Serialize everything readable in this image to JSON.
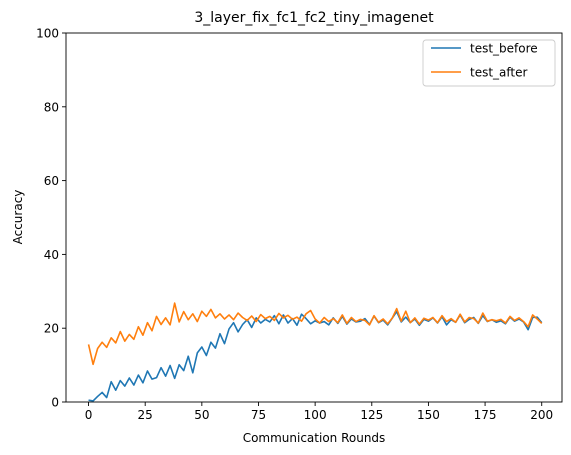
{
  "chart_data": {
    "type": "line",
    "title": "3_layer_fix_fc1_fc2_tiny_imagenet",
    "xlabel": "Communication Rounds",
    "ylabel": "Accuracy",
    "xlim": [
      -9.95,
      208.95
    ],
    "ylim": [
      0,
      100
    ],
    "xticks": [
      0,
      25,
      50,
      75,
      100,
      125,
      150,
      175,
      200
    ],
    "yticks": [
      0,
      20,
      40,
      60,
      80,
      100
    ],
    "grid": false,
    "legend_position": "top-right",
    "series": [
      {
        "name": "test_before",
        "color": "#1f77b4",
        "x": [
          0,
          2,
          4,
          6,
          8,
          10,
          12,
          14,
          16,
          18,
          20,
          22,
          24,
          26,
          28,
          30,
          32,
          34,
          36,
          38,
          40,
          42,
          44,
          46,
          48,
          50,
          52,
          54,
          56,
          58,
          60,
          62,
          64,
          66,
          68,
          70,
          72,
          74,
          76,
          78,
          80,
          82,
          84,
          86,
          88,
          90,
          92,
          94,
          96,
          98,
          100,
          102,
          104,
          106,
          108,
          110,
          112,
          114,
          116,
          118,
          120,
          122,
          124,
          126,
          128,
          130,
          132,
          134,
          136,
          138,
          140,
          142,
          144,
          146,
          148,
          150,
          152,
          154,
          156,
          158,
          160,
          162,
          164,
          166,
          168,
          170,
          172,
          174,
          176,
          178,
          180,
          182,
          184,
          186,
          188,
          190,
          192,
          194,
          196,
          198,
          200
        ],
        "y": [
          0.5,
          0.3,
          1.5,
          2.6,
          1.2,
          5.5,
          3.2,
          5.8,
          4.3,
          6.5,
          4.6,
          7.3,
          5.2,
          8.4,
          6.2,
          6.6,
          9.3,
          7.0,
          9.9,
          6.4,
          10.1,
          8.5,
          12.4,
          7.9,
          13.3,
          14.9,
          12.6,
          16.2,
          14.6,
          18.5,
          15.8,
          19.8,
          21.5,
          19.0,
          21.0,
          22.3,
          20.2,
          22.8,
          21.4,
          22.4,
          21.7,
          23.4,
          21.2,
          23.6,
          21.4,
          22.6,
          20.8,
          23.8,
          22.6,
          21.2,
          22.0,
          21.4,
          21.8,
          20.9,
          22.8,
          21.3,
          23.2,
          21.1,
          22.5,
          21.7,
          21.9,
          22.6,
          21.0,
          23.3,
          21.5,
          22.2,
          20.9,
          22.7,
          24.5,
          21.7,
          23.0,
          21.5,
          22.5,
          20.8,
          22.4,
          21.9,
          22.8,
          21.4,
          23.1,
          20.9,
          22.3,
          21.6,
          23.6,
          21.5,
          22.4,
          22.9,
          21.3,
          23.4,
          21.8,
          22.3,
          21.6,
          22.0,
          21.2,
          23.0,
          21.9,
          22.5,
          21.7,
          19.6,
          22.9,
          23.0,
          21.5
        ]
      },
      {
        "name": "test_after",
        "color": "#ff7f0e",
        "x": [
          0,
          2,
          4,
          6,
          8,
          10,
          12,
          14,
          16,
          18,
          20,
          22,
          24,
          26,
          28,
          30,
          32,
          34,
          36,
          38,
          40,
          42,
          44,
          46,
          48,
          50,
          52,
          54,
          56,
          58,
          60,
          62,
          64,
          66,
          68,
          70,
          72,
          74,
          76,
          78,
          80,
          82,
          84,
          86,
          88,
          90,
          92,
          94,
          96,
          98,
          100,
          102,
          104,
          106,
          108,
          110,
          112,
          114,
          116,
          118,
          120,
          122,
          124,
          126,
          128,
          130,
          132,
          134,
          136,
          138,
          140,
          142,
          144,
          146,
          148,
          150,
          152,
          154,
          156,
          158,
          160,
          162,
          164,
          166,
          168,
          170,
          172,
          174,
          176,
          178,
          180,
          182,
          184,
          186,
          188,
          190,
          192,
          194,
          196,
          198,
          200
        ],
        "y": [
          15.6,
          10.2,
          14.5,
          16.2,
          14.8,
          17.4,
          16.0,
          19.1,
          16.5,
          18.3,
          17.0,
          20.4,
          18.1,
          21.5,
          19.3,
          23.2,
          21.0,
          22.8,
          20.9,
          26.8,
          21.7,
          24.5,
          22.3,
          23.9,
          21.8,
          24.6,
          23.2,
          25.1,
          22.8,
          23.9,
          22.5,
          23.6,
          22.3,
          24.1,
          22.9,
          22.1,
          23.3,
          21.8,
          23.7,
          22.6,
          23.2,
          22.1,
          24.0,
          22.8,
          23.5,
          22.4,
          23.0,
          21.9,
          23.9,
          24.8,
          22.5,
          21.4,
          22.9,
          21.8,
          22.6,
          21.5,
          23.6,
          21.3,
          22.9,
          21.8,
          22.4,
          22.1,
          20.9,
          23.4,
          21.6,
          22.5,
          21.2,
          22.7,
          25.3,
          21.9,
          24.6,
          21.5,
          22.8,
          21.1,
          22.7,
          22.2,
          22.9,
          21.5,
          23.4,
          21.8,
          22.6,
          21.6,
          23.8,
          21.7,
          22.9,
          22.6,
          21.4,
          24.1,
          21.9,
          22.3,
          22.0,
          22.4,
          21.4,
          23.2,
          22.1,
          22.8,
          21.8,
          20.4,
          23.6,
          22.5,
          21.3
        ]
      }
    ]
  }
}
